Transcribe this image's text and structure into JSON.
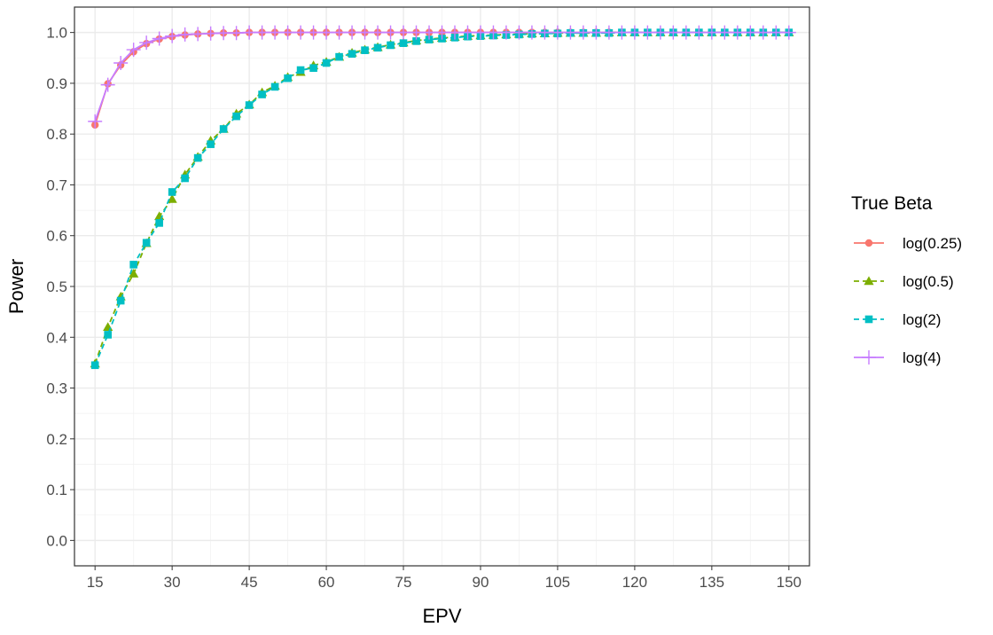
{
  "chart_data": {
    "type": "line",
    "title": "",
    "xlabel": "EPV",
    "ylabel": "Power",
    "xlim": [
      11,
      154
    ],
    "ylim": [
      -0.05,
      1.05
    ],
    "x_ticks": [
      15,
      30,
      45,
      60,
      75,
      90,
      105,
      120,
      135,
      150
    ],
    "x_tick_labels": [
      "15",
      "30",
      "45",
      "60",
      "75",
      "90",
      "105",
      "120",
      "135",
      "150"
    ],
    "y_ticks": [
      0.0,
      0.1,
      0.2,
      0.3,
      0.4,
      0.5,
      0.6,
      0.7,
      0.8,
      0.9,
      1.0
    ],
    "y_tick_labels": [
      "0.0",
      "0.1",
      "0.2",
      "0.3",
      "0.4",
      "0.5",
      "0.6",
      "0.7",
      "0.8",
      "0.9",
      "1.0"
    ],
    "grid": true,
    "legend": {
      "title": "True Beta",
      "position": "right"
    },
    "x": [
      15,
      17.5,
      20,
      22.5,
      25,
      27.5,
      30,
      32.5,
      35,
      37.5,
      40,
      42.5,
      45,
      47.5,
      50,
      52.5,
      55,
      57.5,
      60,
      62.5,
      65,
      67.5,
      70,
      72.5,
      75,
      77.5,
      80,
      82.5,
      85,
      87.5,
      90,
      92.5,
      95,
      97.5,
      100,
      102.5,
      105,
      107.5,
      110,
      112.5,
      115,
      117.5,
      120,
      122.5,
      125,
      127.5,
      130,
      132.5,
      135,
      137.5,
      140,
      142.5,
      145,
      147.5,
      150
    ],
    "series": [
      {
        "name": "log(0.25)",
        "color": "#F8766D",
        "marker": "circle",
        "dash": "solid",
        "values": [
          0.818,
          0.899,
          0.936,
          0.962,
          0.978,
          0.987,
          0.992,
          0.995,
          0.997,
          0.998,
          0.999,
          0.999,
          1.0,
          1.0,
          1.0,
          1.0,
          1.0,
          1.0,
          1.0,
          1.0,
          1.0,
          1.0,
          1.0,
          1.0,
          1.0,
          1.0,
          1.0,
          1.0,
          1.0,
          1.0,
          1.0,
          1.0,
          1.0,
          1.0,
          1.0,
          1.0,
          1.0,
          1.0,
          1.0,
          1.0,
          1.0,
          1.0,
          1.0,
          1.0,
          1.0,
          1.0,
          1.0,
          1.0,
          1.0,
          1.0,
          1.0,
          1.0,
          1.0,
          1.0,
          1.0
        ]
      },
      {
        "name": "log(0.5)",
        "color": "#7CAE00",
        "marker": "triangle",
        "dash": "dashed",
        "values": [
          0.348,
          0.42,
          0.48,
          0.525,
          0.585,
          0.638,
          0.672,
          0.72,
          0.755,
          0.787,
          0.81,
          0.84,
          0.858,
          0.882,
          0.895,
          0.912,
          0.922,
          0.935,
          0.942,
          0.952,
          0.96,
          0.966,
          0.971,
          0.976,
          0.98,
          0.984,
          0.987,
          0.989,
          0.991,
          0.993,
          0.994,
          0.995,
          0.996,
          0.997,
          0.998,
          0.998,
          0.999,
          0.999,
          0.999,
          0.999,
          1.0,
          1.0,
          1.0,
          1.0,
          1.0,
          1.0,
          1.0,
          1.0,
          1.0,
          1.0,
          1.0,
          1.0,
          1.0,
          1.0,
          1.0
        ]
      },
      {
        "name": "log(2)",
        "color": "#00BFC4",
        "marker": "square",
        "dash": "dashed",
        "values": [
          0.345,
          0.405,
          0.472,
          0.543,
          0.586,
          0.625,
          0.686,
          0.713,
          0.753,
          0.78,
          0.81,
          0.835,
          0.857,
          0.878,
          0.893,
          0.91,
          0.926,
          0.93,
          0.94,
          0.952,
          0.958,
          0.965,
          0.97,
          0.975,
          0.979,
          0.983,
          0.986,
          0.988,
          0.99,
          0.992,
          0.993,
          0.994,
          0.995,
          0.996,
          0.997,
          0.998,
          0.998,
          0.999,
          0.999,
          0.999,
          0.999,
          1.0,
          1.0,
          1.0,
          1.0,
          1.0,
          1.0,
          1.0,
          1.0,
          1.0,
          1.0,
          1.0,
          1.0,
          1.0,
          1.0
        ]
      },
      {
        "name": "log(4)",
        "color": "#C77CFF",
        "marker": "plus",
        "dash": "solid",
        "values": [
          0.825,
          0.897,
          0.94,
          0.966,
          0.98,
          0.988,
          0.993,
          0.996,
          0.997,
          0.998,
          0.999,
          0.999,
          1.0,
          1.0,
          1.0,
          1.0,
          1.0,
          1.0,
          1.0,
          1.0,
          1.0,
          1.0,
          1.0,
          1.0,
          1.0,
          1.0,
          1.0,
          1.0,
          1.0,
          1.0,
          1.0,
          1.0,
          1.0,
          1.0,
          1.0,
          1.0,
          1.0,
          1.0,
          1.0,
          1.0,
          1.0,
          1.0,
          1.0,
          1.0,
          1.0,
          1.0,
          1.0,
          1.0,
          1.0,
          1.0,
          1.0,
          1.0,
          1.0,
          1.0,
          1.0
        ]
      }
    ]
  }
}
